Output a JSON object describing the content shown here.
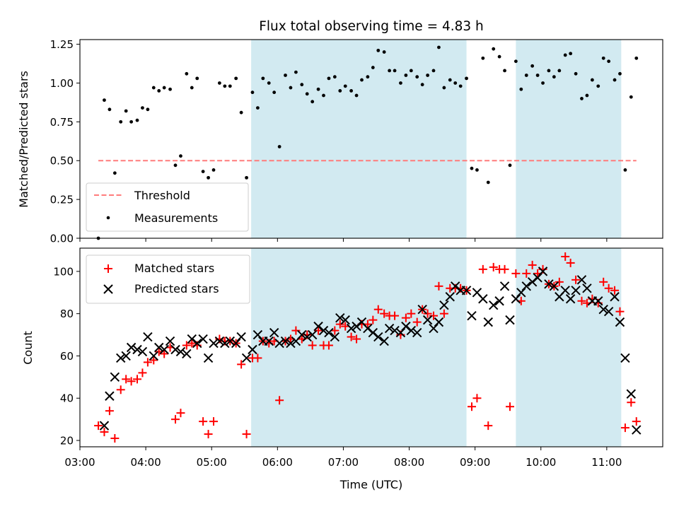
{
  "title": "Flux total observing time = 4.83 h",
  "colors": {
    "band": "#add8e6",
    "threshold": "#ff7b7b",
    "matched": "#ff0000",
    "predicted": "#000000",
    "measurement": "#000000"
  },
  "chart_data": [
    {
      "type": "scatter",
      "name": "ratio-panel",
      "ylabel": "Matched/Predicted stars",
      "xlabel": "",
      "xlim": [
        3.0,
        11.85
      ],
      "ylim": [
        0.0,
        1.28
      ],
      "yticks": [
        0.0,
        0.25,
        0.5,
        0.75,
        1.0,
        1.25
      ],
      "ytick_labels": [
        "0.00",
        "0.25",
        "0.50",
        "0.75",
        "1.00",
        "1.25"
      ],
      "shaded_intervals": [
        [
          5.6,
          8.87
        ],
        [
          9.62,
          11.22
        ]
      ],
      "threshold": {
        "name": "Threshold",
        "value": 0.5,
        "x_range": [
          3.28,
          11.45
        ]
      },
      "legend": {
        "position": "lower-left",
        "entries": [
          "Threshold",
          "Measurements"
        ]
      },
      "series": [
        {
          "name": "Measurements",
          "x": [
            3.28,
            3.37,
            3.45,
            3.53,
            3.62,
            3.7,
            3.78,
            3.87,
            3.95,
            4.03,
            4.12,
            4.2,
            4.28,
            4.37,
            4.45,
            4.53,
            4.62,
            4.7,
            4.78,
            4.87,
            4.95,
            5.03,
            5.12,
            5.2,
            5.28,
            5.37,
            5.45,
            5.53,
            5.62,
            5.7,
            5.78,
            5.87,
            5.95,
            6.03,
            6.12,
            6.2,
            6.28,
            6.37,
            6.45,
            6.53,
            6.62,
            6.7,
            6.78,
            6.87,
            6.95,
            7.03,
            7.12,
            7.2,
            7.28,
            7.37,
            7.45,
            7.53,
            7.62,
            7.7,
            7.78,
            7.87,
            7.95,
            8.03,
            8.12,
            8.2,
            8.28,
            8.37,
            8.45,
            8.53,
            8.62,
            8.7,
            8.78,
            8.87,
            8.95,
            9.03,
            9.12,
            9.2,
            9.28,
            9.37,
            9.45,
            9.53,
            9.62,
            9.7,
            9.78,
            9.87,
            9.95,
            10.03,
            10.12,
            10.2,
            10.28,
            10.37,
            10.45,
            10.53,
            10.62,
            10.7,
            10.78,
            10.87,
            10.95,
            11.03,
            11.12,
            11.2,
            11.28,
            11.37,
            11.45
          ],
          "y": [
            0.0,
            0.89,
            0.83,
            0.42,
            0.75,
            0.82,
            0.75,
            0.76,
            0.84,
            0.83,
            0.97,
            0.95,
            0.97,
            0.96,
            0.47,
            0.53,
            1.06,
            0.97,
            1.03,
            0.43,
            0.39,
            0.44,
            1.0,
            0.98,
            0.98,
            1.03,
            0.81,
            0.39,
            0.94,
            0.84,
            1.03,
            1.0,
            0.94,
            0.59,
            1.05,
            0.97,
            1.07,
            0.99,
            0.93,
            0.88,
            0.96,
            0.92,
            1.03,
            1.04,
            0.95,
            0.98,
            0.95,
            0.92,
            1.02,
            1.04,
            1.1,
            1.21,
            1.2,
            1.08,
            1.08,
            1.0,
            1.05,
            1.08,
            1.04,
            0.99,
            1.05,
            1.08,
            1.23,
            0.97,
            1.02,
            1.0,
            0.98,
            1.03,
            0.45,
            0.44,
            1.16,
            0.36,
            1.22,
            1.17,
            1.08,
            0.47,
            1.14,
            0.96,
            1.05,
            1.11,
            1.05,
            1.0,
            1.08,
            1.04,
            1.08,
            1.18,
            1.19,
            1.06,
            0.9,
            0.92,
            1.02,
            0.98,
            1.16,
            1.14,
            1.02,
            1.06,
            0.44,
            0.91,
            1.16
          ]
        }
      ]
    },
    {
      "type": "scatter",
      "name": "count-panel",
      "ylabel": "Count",
      "xlabel": "Time (UTC)",
      "xlim": [
        3.0,
        11.85
      ],
      "ylim": [
        17,
        111
      ],
      "xticks": [
        3,
        4,
        5,
        6,
        7,
        8,
        9,
        10,
        11
      ],
      "xtick_labels": [
        "03:00",
        "04:00",
        "05:00",
        "06:00",
        "07:00",
        "08:00",
        "09:00",
        "10:00",
        "11:00"
      ],
      "yticks": [
        20,
        40,
        60,
        80,
        100
      ],
      "ytick_labels": [
        "20",
        "40",
        "60",
        "80",
        "100"
      ],
      "shaded_intervals": [
        [
          5.6,
          8.87
        ],
        [
          9.62,
          11.22
        ]
      ],
      "legend": {
        "position": "upper-left",
        "entries": [
          "Matched stars",
          "Predicted stars"
        ]
      },
      "series": [
        {
          "name": "Matched stars",
          "marker": "+",
          "x": [
            3.28,
            3.37,
            3.45,
            3.53,
            3.62,
            3.7,
            3.78,
            3.87,
            3.95,
            4.03,
            4.12,
            4.2,
            4.28,
            4.37,
            4.45,
            4.53,
            4.62,
            4.7,
            4.78,
            4.87,
            4.95,
            5.03,
            5.12,
            5.2,
            5.28,
            5.37,
            5.45,
            5.53,
            5.62,
            5.7,
            5.78,
            5.87,
            5.95,
            6.03,
            6.12,
            6.2,
            6.28,
            6.37,
            6.45,
            6.53,
            6.62,
            6.7,
            6.78,
            6.87,
            6.95,
            7.03,
            7.12,
            7.2,
            7.28,
            7.37,
            7.45,
            7.53,
            7.62,
            7.7,
            7.78,
            7.87,
            7.95,
            8.03,
            8.12,
            8.2,
            8.28,
            8.37,
            8.45,
            8.53,
            8.62,
            8.7,
            8.78,
            8.87,
            8.95,
            9.03,
            9.12,
            9.2,
            9.28,
            9.37,
            9.45,
            9.53,
            9.62,
            9.7,
            9.78,
            9.87,
            9.95,
            10.03,
            10.12,
            10.2,
            10.28,
            10.37,
            10.45,
            10.53,
            10.62,
            10.7,
            10.78,
            10.87,
            10.95,
            11.03,
            11.12,
            11.2,
            11.28,
            11.37,
            11.45
          ],
          "y": [
            27,
            24,
            34,
            21,
            44,
            49,
            48,
            49,
            52,
            57,
            58,
            62,
            61,
            64,
            30,
            33,
            65,
            66,
            65,
            29,
            23,
            29,
            68,
            67,
            67,
            66,
            56,
            23,
            59,
            59,
            67,
            66,
            67,
            39,
            67,
            68,
            72,
            68,
            70,
            65,
            72,
            65,
            65,
            72,
            75,
            74,
            69,
            68,
            75,
            75,
            77,
            82,
            80,
            79,
            79,
            70,
            78,
            80,
            76,
            82,
            80,
            79,
            93,
            80,
            92,
            92,
            92,
            91,
            36,
            40,
            101,
            27,
            102,
            101,
            101,
            36,
            99,
            86,
            99,
            103,
            99,
            101,
            94,
            93,
            95,
            107,
            104,
            96,
            86,
            85,
            87,
            85,
            95,
            92,
            91,
            81,
            26,
            38,
            29
          ]
        },
        {
          "name": "Predicted stars",
          "marker": "x",
          "x": [
            3.37,
            3.45,
            3.53,
            3.62,
            3.7,
            3.78,
            3.87,
            3.95,
            4.03,
            4.12,
            4.2,
            4.28,
            4.37,
            4.45,
            4.53,
            4.62,
            4.7,
            4.78,
            4.87,
            4.95,
            5.03,
            5.12,
            5.2,
            5.28,
            5.37,
            5.45,
            5.53,
            5.62,
            5.7,
            5.78,
            5.87,
            5.95,
            6.03,
            6.12,
            6.2,
            6.28,
            6.37,
            6.45,
            6.53,
            6.62,
            6.7,
            6.78,
            6.87,
            6.95,
            7.03,
            7.12,
            7.2,
            7.28,
            7.37,
            7.45,
            7.53,
            7.62,
            7.7,
            7.78,
            7.87,
            7.95,
            8.03,
            8.12,
            8.2,
            8.28,
            8.37,
            8.45,
            8.53,
            8.62,
            8.7,
            8.78,
            8.87,
            8.95,
            9.03,
            9.12,
            9.2,
            9.28,
            9.37,
            9.45,
            9.53,
            9.62,
            9.7,
            9.78,
            9.87,
            9.95,
            10.03,
            10.12,
            10.2,
            10.28,
            10.37,
            10.45,
            10.53,
            10.62,
            10.7,
            10.78,
            10.87,
            10.95,
            11.03,
            11.12,
            11.2,
            11.28,
            11.37,
            11.45
          ],
          "y": [
            27,
            41,
            50,
            59,
            60,
            64,
            63,
            62,
            69,
            60,
            64,
            63,
            67,
            63,
            62,
            61,
            68,
            66,
            68,
            59,
            66,
            67,
            66,
            67,
            66,
            69,
            59,
            63,
            70,
            67,
            67,
            71,
            66,
            67,
            66,
            67,
            70,
            69,
            70,
            74,
            72,
            71,
            69,
            78,
            77,
            73,
            74,
            76,
            73,
            71,
            69,
            67,
            73,
            72,
            71,
            74,
            72,
            71,
            82,
            77,
            73,
            76,
            84,
            88,
            93,
            91,
            91,
            79,
            90,
            87,
            76,
            84,
            86,
            93,
            77,
            87,
            90,
            93,
            95,
            97,
            100,
            94,
            93,
            88,
            91,
            87,
            91,
            96,
            92,
            86,
            86,
            82,
            81,
            88,
            76,
            59,
            42,
            25
          ]
        }
      ]
    }
  ]
}
